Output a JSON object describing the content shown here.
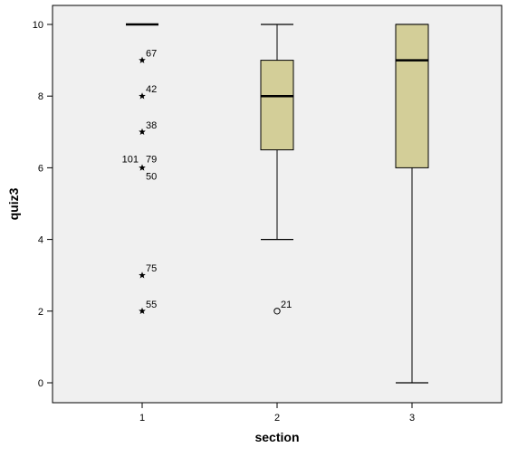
{
  "chart_data": {
    "type": "boxplot",
    "xlabel": "section",
    "ylabel": "quiz3",
    "ylim": [
      -0.4,
      10.5
    ],
    "yticks": [
      0,
      2,
      4,
      6,
      8,
      10
    ],
    "categories": [
      "1",
      "2",
      "3"
    ],
    "grid": false,
    "colors": {
      "box_fill": "#d3ce98",
      "plot_background": "#f0f0f0"
    },
    "boxes": [
      {
        "category": "1",
        "min": 10,
        "q1": 10,
        "median": 10,
        "q3": 10,
        "max": 10,
        "outliers": [
          {
            "value": 9,
            "label": "67",
            "marker": "star"
          },
          {
            "value": 8,
            "label": "42",
            "marker": "star"
          },
          {
            "value": 7,
            "label": "38",
            "marker": "star"
          },
          {
            "value": 6,
            "label": "101",
            "marker": "star"
          },
          {
            "value": 6,
            "label": "79",
            "marker": "star"
          },
          {
            "value": 6,
            "label": "50",
            "marker": "star"
          },
          {
            "value": 3,
            "label": "75",
            "marker": "star"
          },
          {
            "value": 2,
            "label": "55",
            "marker": "star"
          }
        ]
      },
      {
        "category": "2",
        "min": 4,
        "q1": 6.5,
        "median": 8,
        "q3": 9,
        "max": 10,
        "outliers": [
          {
            "value": 2,
            "label": "21",
            "marker": "circle"
          }
        ]
      },
      {
        "category": "3",
        "min": 0,
        "q1": 6,
        "median": 9,
        "q3": 10,
        "max": 10,
        "outliers": []
      }
    ]
  }
}
